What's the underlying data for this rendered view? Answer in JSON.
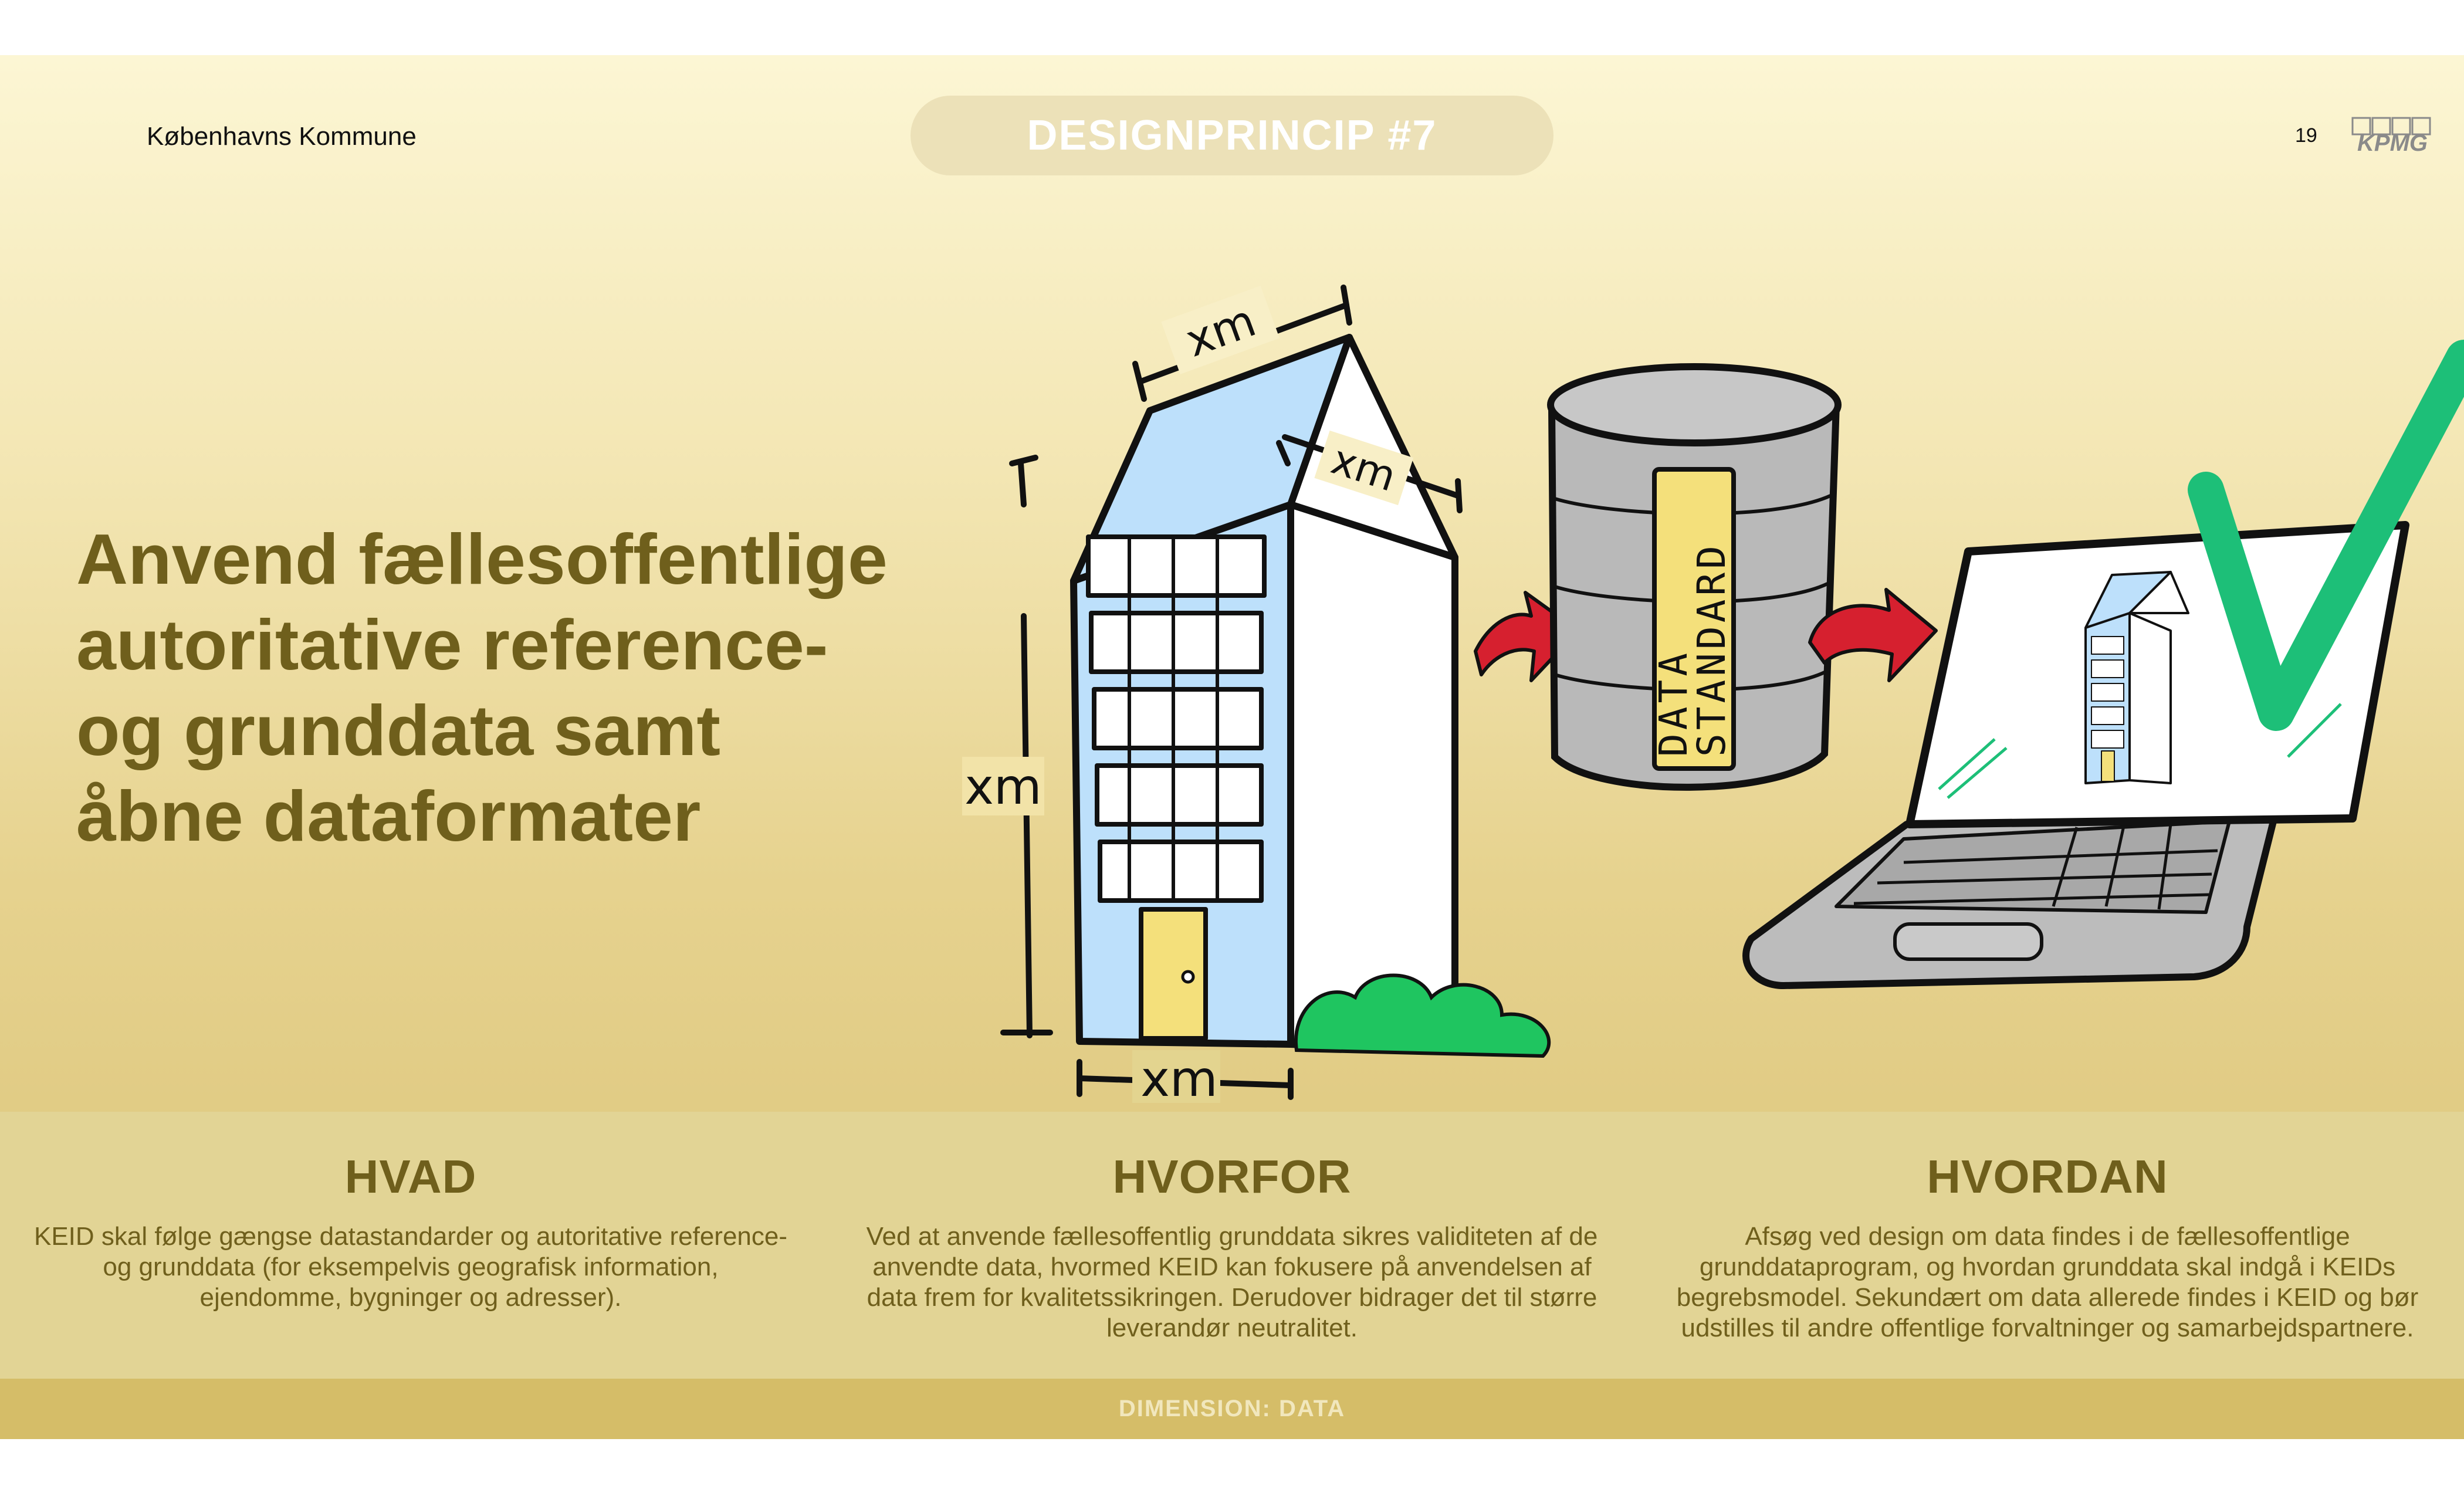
{
  "header": {
    "organization": "Københavns Kommune",
    "principle_label": "DESIGNPRINCIP #7",
    "page_number": "19",
    "logo_text": "KPMG"
  },
  "headline": {
    "line1": "Anvend fællesoffentlige",
    "line2": "autoritative reference-",
    "line3": "og grunddata samt",
    "line4": "åbne dataformater"
  },
  "illustration": {
    "dimension_label": "xm",
    "cylinder_label_line1": "DATA",
    "cylinder_label_line2": "STANDARD",
    "icons": [
      "building-icon",
      "data-standard-cylinder-icon",
      "arrow-right-icon",
      "laptop-icon",
      "checkmark-icon",
      "bush-icon"
    ]
  },
  "columns": [
    {
      "heading": "HVAD",
      "text": "KEID skal følge gængse datastandarder og autoritative reference- og grunddata (for eksempelvis geografisk information, ejendomme, bygninger og adresser)."
    },
    {
      "heading": "HVORFOR",
      "text": "Ved at anvende fællesoffentlig grunddata sikres validiteten af de anvendte data, hvormed KEID kan fokusere på anvendelsen af data frem for kvalitetssikringen. Derudover bidrager det til større leverandør neutralitet."
    },
    {
      "heading": "HVORDAN",
      "text": "Afsøg ved design om data findes i de fællesoffentlige grunddataprogram, og hvordan grunddata skal indgå i KEIDs begrebsmodel. Sekundært om data allerede findes i KEID og bør udstilles til andre offentlige forvaltninger og samarbejdspartnere."
    }
  ],
  "footer": {
    "label": "DIMENSION: DATA"
  },
  "colors": {
    "heading": "#6f5f1c",
    "band": "#e2d495",
    "footer": "#d5bd68",
    "check": "#1dbf78",
    "arrow": "#d6202f",
    "building_blue": "#bde0fb",
    "door_yellow": "#f4e07b"
  }
}
